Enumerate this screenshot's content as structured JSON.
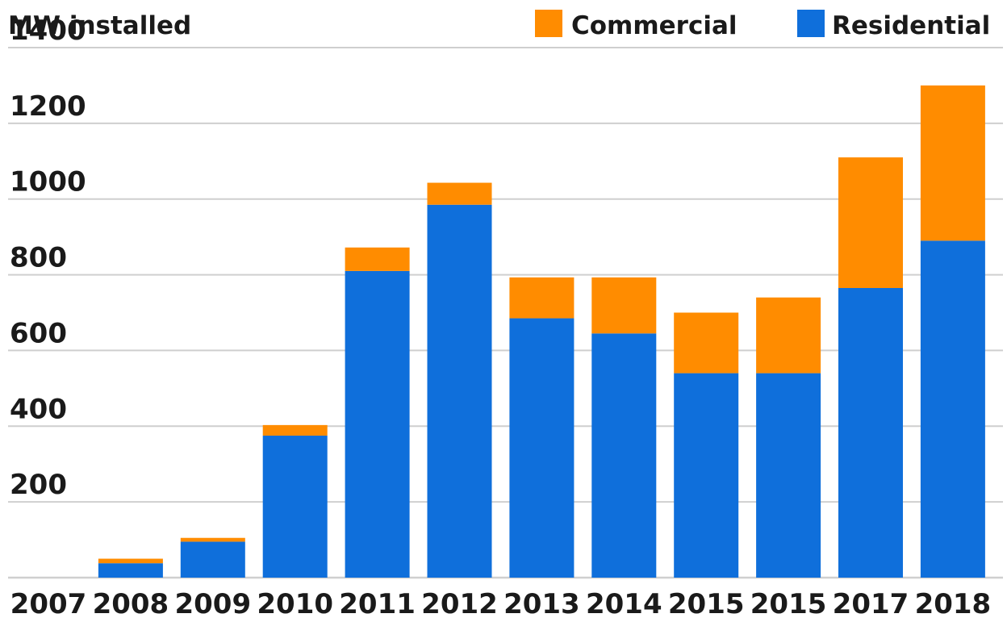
{
  "chart_data": {
    "type": "bar",
    "stacked": true,
    "ylabel": "MW installed",
    "xlabel": "",
    "title": "",
    "ylim": [
      0,
      1400
    ],
    "yticks": [
      200,
      400,
      600,
      800,
      1000,
      1200,
      1400
    ],
    "grid": true,
    "legend_position": "top-right",
    "categories": [
      "2007",
      "2008",
      "2009",
      "2010",
      "2011",
      "2012",
      "2013",
      "2014",
      "2015",
      "2015",
      "2017",
      "2018"
    ],
    "series": [
      {
        "name": "Residential",
        "color": "#0f6fdb",
        "values": [
          0,
          38,
          95,
          375,
          810,
          985,
          685,
          645,
          540,
          540,
          765,
          890
        ]
      },
      {
        "name": "Commercial",
        "color": "#ff8c00",
        "values": [
          0,
          12,
          10,
          28,
          62,
          58,
          108,
          148,
          160,
          200,
          345,
          410
        ]
      }
    ],
    "legend_order": [
      "Commercial",
      "Residential"
    ]
  }
}
